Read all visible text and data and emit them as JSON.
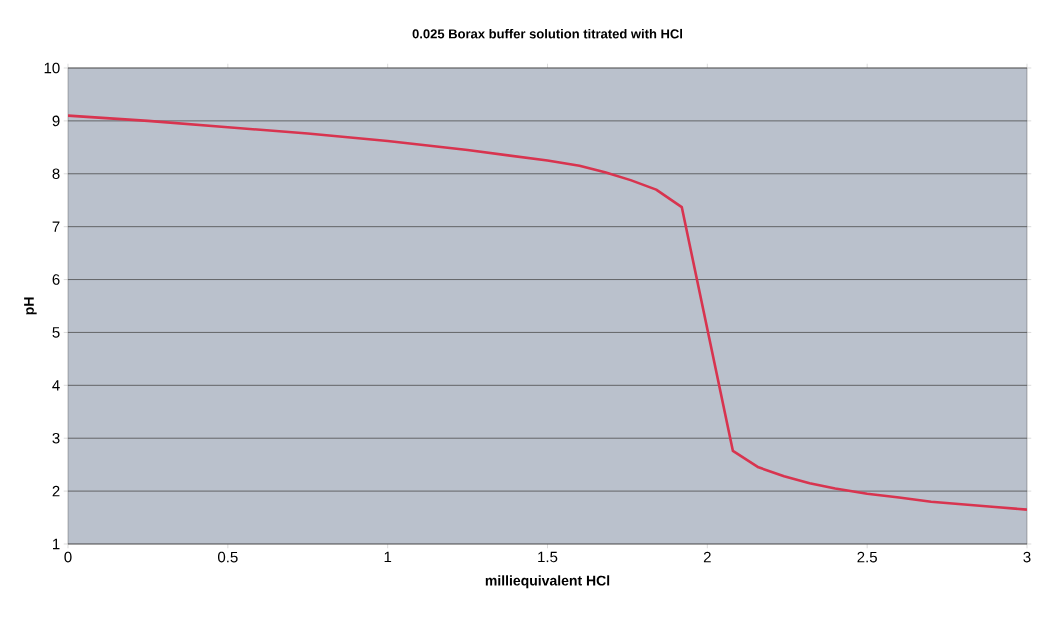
{
  "chart_data": {
    "type": "line",
    "title": "0.025 Borax buffer solution titrated with HCl",
    "xlabel": "milliequivalent HCl",
    "ylabel": "pH",
    "x": [
      0,
      0.25,
      0.5,
      0.75,
      1.0,
      1.25,
      1.5,
      1.6,
      1.68,
      1.76,
      1.84,
      1.92,
      2.08,
      2.16,
      2.24,
      2.32,
      2.4,
      2.5,
      2.6,
      2.7,
      2.8,
      2.9,
      3.0
    ],
    "series": [
      {
        "color": "#d8344f",
        "values": [
          9.1,
          9.0,
          8.88,
          8.76,
          8.62,
          8.45,
          8.25,
          8.15,
          8.03,
          7.88,
          7.7,
          7.37,
          2.76,
          2.45,
          2.28,
          2.15,
          2.05,
          1.95,
          1.88,
          1.8,
          1.75,
          1.7,
          1.65
        ]
      }
    ],
    "xlim": [
      0,
      3
    ],
    "ylim": [
      1,
      10
    ],
    "xticks": [
      0,
      0.5,
      1,
      1.5,
      2,
      2.5,
      3
    ],
    "yticks": [
      1,
      2,
      3,
      4,
      5,
      6,
      7,
      8,
      9,
      10
    ],
    "grid": "y",
    "marker": "none",
    "line_style": "solid"
  }
}
